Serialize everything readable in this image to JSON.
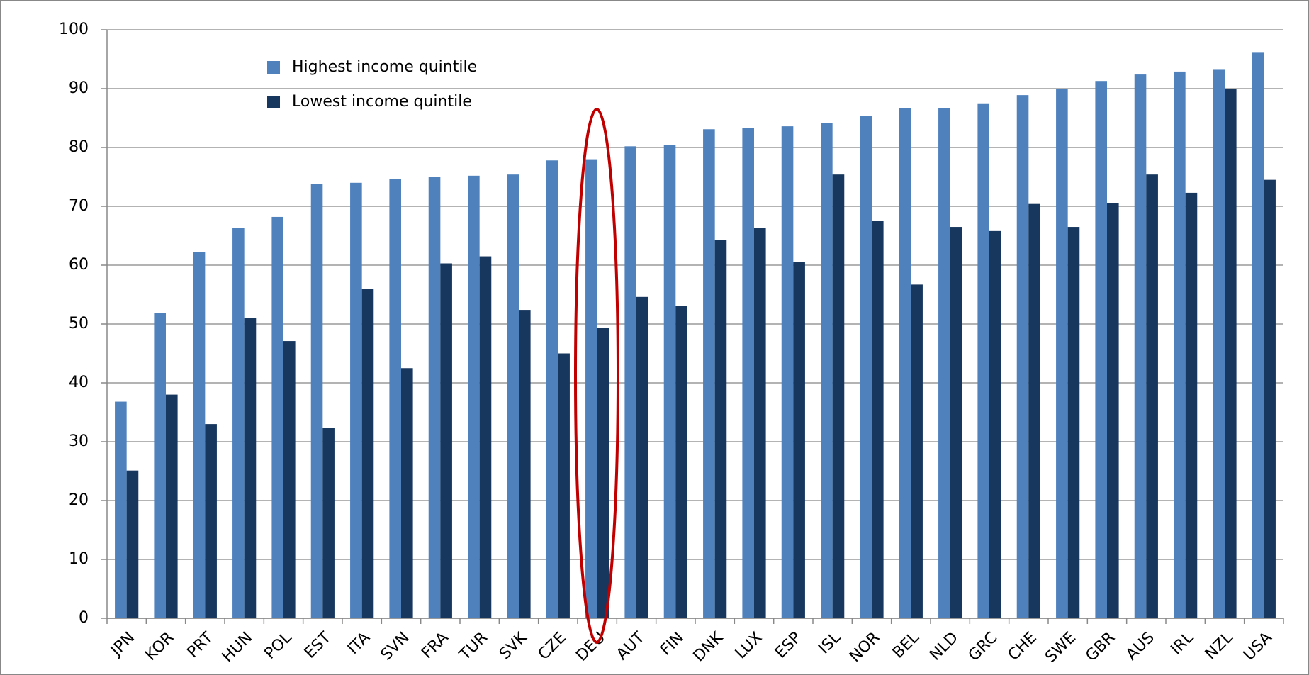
{
  "chart_data": {
    "type": "bar",
    "categories": [
      "JPN",
      "KOR",
      "PRT",
      "HUN",
      "POL",
      "EST",
      "ITA",
      "SVN",
      "FRA",
      "TUR",
      "SVK",
      "CZE",
      "DEU",
      "AUT",
      "FIN",
      "DNK",
      "LUX",
      "ESP",
      "ISL",
      "NOR",
      "BEL",
      "NLD",
      "GRC",
      "CHE",
      "SWE",
      "GBR",
      "AUS",
      "IRL",
      "NZL",
      "USA"
    ],
    "series": [
      {
        "name": "Highest income quintile",
        "color": "#4f81bd",
        "values": [
          36.8,
          51.9,
          62.2,
          66.3,
          68.2,
          73.8,
          74.0,
          74.7,
          75.0,
          75.2,
          75.4,
          77.8,
          78.0,
          80.2,
          80.4,
          83.1,
          83.3,
          83.6,
          84.1,
          85.3,
          86.7,
          86.7,
          87.5,
          88.9,
          90.0,
          91.3,
          92.4,
          92.9,
          93.2,
          96.1
        ]
      },
      {
        "name": "Lowest income quintile",
        "color": "#17375e",
        "values": [
          25.1,
          38.0,
          33.0,
          51.0,
          47.1,
          32.3,
          56.0,
          42.5,
          60.3,
          61.5,
          52.4,
          45.0,
          49.3,
          54.6,
          53.1,
          64.3,
          66.3,
          60.5,
          75.4,
          67.5,
          56.7,
          66.5,
          65.8,
          70.4,
          66.5,
          70.6,
          75.4,
          72.3,
          89.9,
          74.5
        ]
      }
    ],
    "ylim": [
      0,
      100
    ],
    "yticks": [
      0,
      10,
      20,
      30,
      40,
      50,
      60,
      70,
      80,
      90,
      100
    ],
    "grid": true
  }
}
